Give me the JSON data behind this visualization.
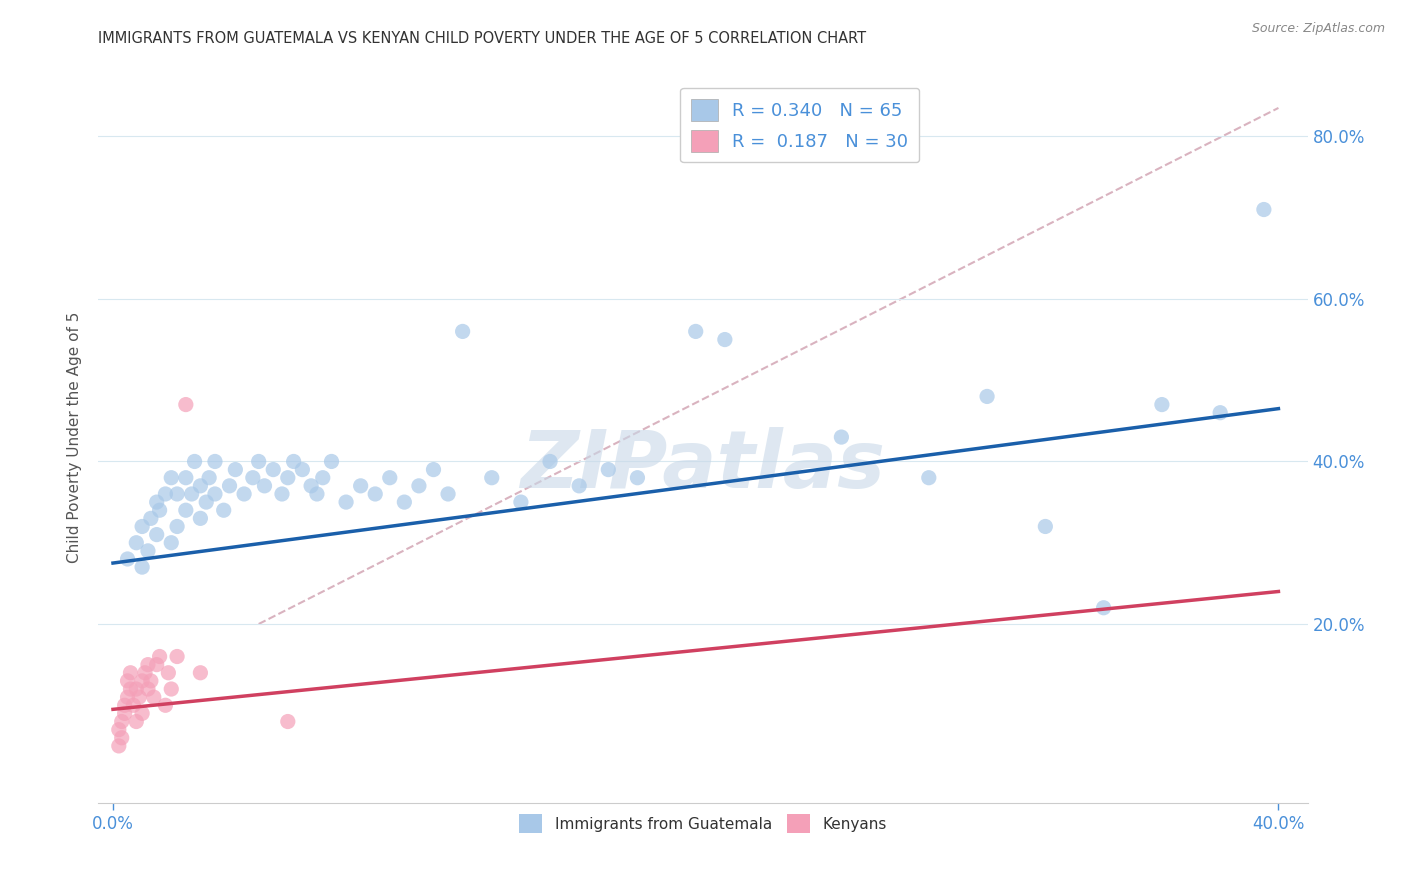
{
  "title": "IMMIGRANTS FROM GUATEMALA VS KENYAN CHILD POVERTY UNDER THE AGE OF 5 CORRELATION CHART",
  "source": "Source: ZipAtlas.com",
  "ylabel": "Child Poverty Under the Age of 5",
  "xlabel": "",
  "legend_label_blue": "Immigrants from Guatemala",
  "legend_label_pink": "Kenyans",
  "R_blue": 0.34,
  "N_blue": 65,
  "R_pink": 0.187,
  "N_pink": 30,
  "xlim": [
    -0.005,
    0.41
  ],
  "ylim": [
    -0.02,
    0.88
  ],
  "xtick_positions": [
    0.0,
    0.4
  ],
  "xtick_labels": [
    "0.0%",
    "40.0%"
  ],
  "yticks_right": [
    0.2,
    0.4,
    0.6,
    0.8
  ],
  "color_blue": "#a8c8e8",
  "color_pink": "#f4a0b8",
  "line_color_blue": "#1a5faa",
  "line_color_pink": "#d04060",
  "line_color_dash": "#d0a0b0",
  "background_color": "#ffffff",
  "watermark": "ZIPatlas",
  "watermark_color": "#c8d8e8",
  "blue_x": [
    0.005,
    0.008,
    0.01,
    0.01,
    0.012,
    0.013,
    0.015,
    0.015,
    0.016,
    0.018,
    0.02,
    0.02,
    0.022,
    0.022,
    0.025,
    0.025,
    0.027,
    0.028,
    0.03,
    0.03,
    0.032,
    0.033,
    0.035,
    0.035,
    0.038,
    0.04,
    0.042,
    0.045,
    0.048,
    0.05,
    0.052,
    0.055,
    0.058,
    0.06,
    0.062,
    0.065,
    0.068,
    0.07,
    0.072,
    0.075,
    0.08,
    0.085,
    0.09,
    0.095,
    0.1,
    0.105,
    0.11,
    0.115,
    0.12,
    0.13,
    0.14,
    0.15,
    0.16,
    0.17,
    0.18,
    0.2,
    0.21,
    0.25,
    0.28,
    0.3,
    0.32,
    0.34,
    0.36,
    0.38,
    0.395
  ],
  "blue_y": [
    0.28,
    0.3,
    0.27,
    0.32,
    0.29,
    0.33,
    0.31,
    0.35,
    0.34,
    0.36,
    0.3,
    0.38,
    0.32,
    0.36,
    0.34,
    0.38,
    0.36,
    0.4,
    0.33,
    0.37,
    0.35,
    0.38,
    0.36,
    0.4,
    0.34,
    0.37,
    0.39,
    0.36,
    0.38,
    0.4,
    0.37,
    0.39,
    0.36,
    0.38,
    0.4,
    0.39,
    0.37,
    0.36,
    0.38,
    0.4,
    0.35,
    0.37,
    0.36,
    0.38,
    0.35,
    0.37,
    0.39,
    0.36,
    0.56,
    0.38,
    0.35,
    0.4,
    0.37,
    0.39,
    0.38,
    0.56,
    0.55,
    0.43,
    0.38,
    0.48,
    0.32,
    0.22,
    0.47,
    0.46,
    0.71
  ],
  "pink_x": [
    0.002,
    0.002,
    0.003,
    0.003,
    0.004,
    0.004,
    0.005,
    0.005,
    0.006,
    0.006,
    0.007,
    0.008,
    0.008,
    0.009,
    0.01,
    0.01,
    0.011,
    0.012,
    0.012,
    0.013,
    0.014,
    0.015,
    0.016,
    0.018,
    0.019,
    0.02,
    0.022,
    0.025,
    0.03,
    0.06
  ],
  "pink_y": [
    0.05,
    0.07,
    0.06,
    0.08,
    0.09,
    0.1,
    0.11,
    0.13,
    0.12,
    0.14,
    0.1,
    0.08,
    0.12,
    0.11,
    0.09,
    0.13,
    0.14,
    0.12,
    0.15,
    0.13,
    0.11,
    0.15,
    0.16,
    0.1,
    0.14,
    0.12,
    0.16,
    0.47,
    0.14,
    0.08
  ],
  "blue_trend_x": [
    0.0,
    0.4
  ],
  "blue_trend_y": [
    0.275,
    0.465
  ],
  "pink_trend_x": [
    0.0,
    0.4
  ],
  "pink_trend_y": [
    0.095,
    0.24
  ],
  "dash_trend_x": [
    0.05,
    0.4
  ],
  "dash_trend_y": [
    0.2,
    0.835
  ]
}
